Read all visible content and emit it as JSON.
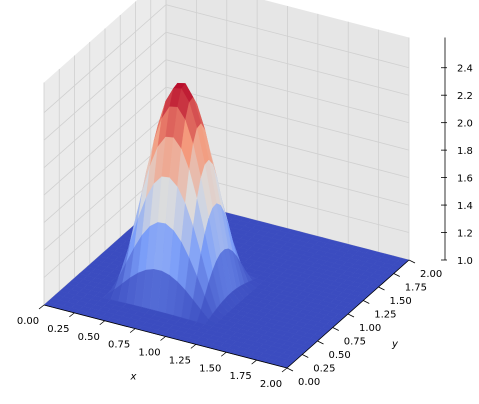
{
  "chart_data": {
    "type": "surface3d",
    "title": "",
    "xlabel": "x",
    "ylabel": "y",
    "zlabel": "",
    "xlim": [
      0.0,
      2.0
    ],
    "ylim": [
      0.0,
      2.0
    ],
    "zlim": [
      1.0,
      2.5
    ],
    "x_ticks": [
      "0.00",
      "0.25",
      "0.50",
      "0.75",
      "1.00",
      "1.25",
      "1.50",
      "1.75",
      "2.00"
    ],
    "y_ticks": [
      "0.00",
      "0.25",
      "0.50",
      "0.75",
      "1.00",
      "1.25",
      "1.50",
      "1.75",
      "2.00"
    ],
    "z_ticks": [
      "1.0",
      "1.2",
      "1.4",
      "1.6",
      "1.8",
      "2.0",
      "2.2",
      "2.4"
    ],
    "colormap": "coolwarm",
    "colors": {
      "low": "#3b4cc0",
      "mid": "#dddddd",
      "high": "#b40426",
      "pane": "#f2f2f2",
      "grid": "#d0d0d0"
    },
    "surface": {
      "description_of_shape": "flat plane at z=1 with a square hat / smoothed hump of height ~2.5 centered near x=0.75, y=0.75",
      "base_z": 1.0,
      "peak_z": 2.5,
      "hump_x_range": [
        0.5,
        1.0
      ],
      "hump_y_range": [
        0.5,
        1.0
      ],
      "grid_n": 31
    },
    "grid": true
  }
}
